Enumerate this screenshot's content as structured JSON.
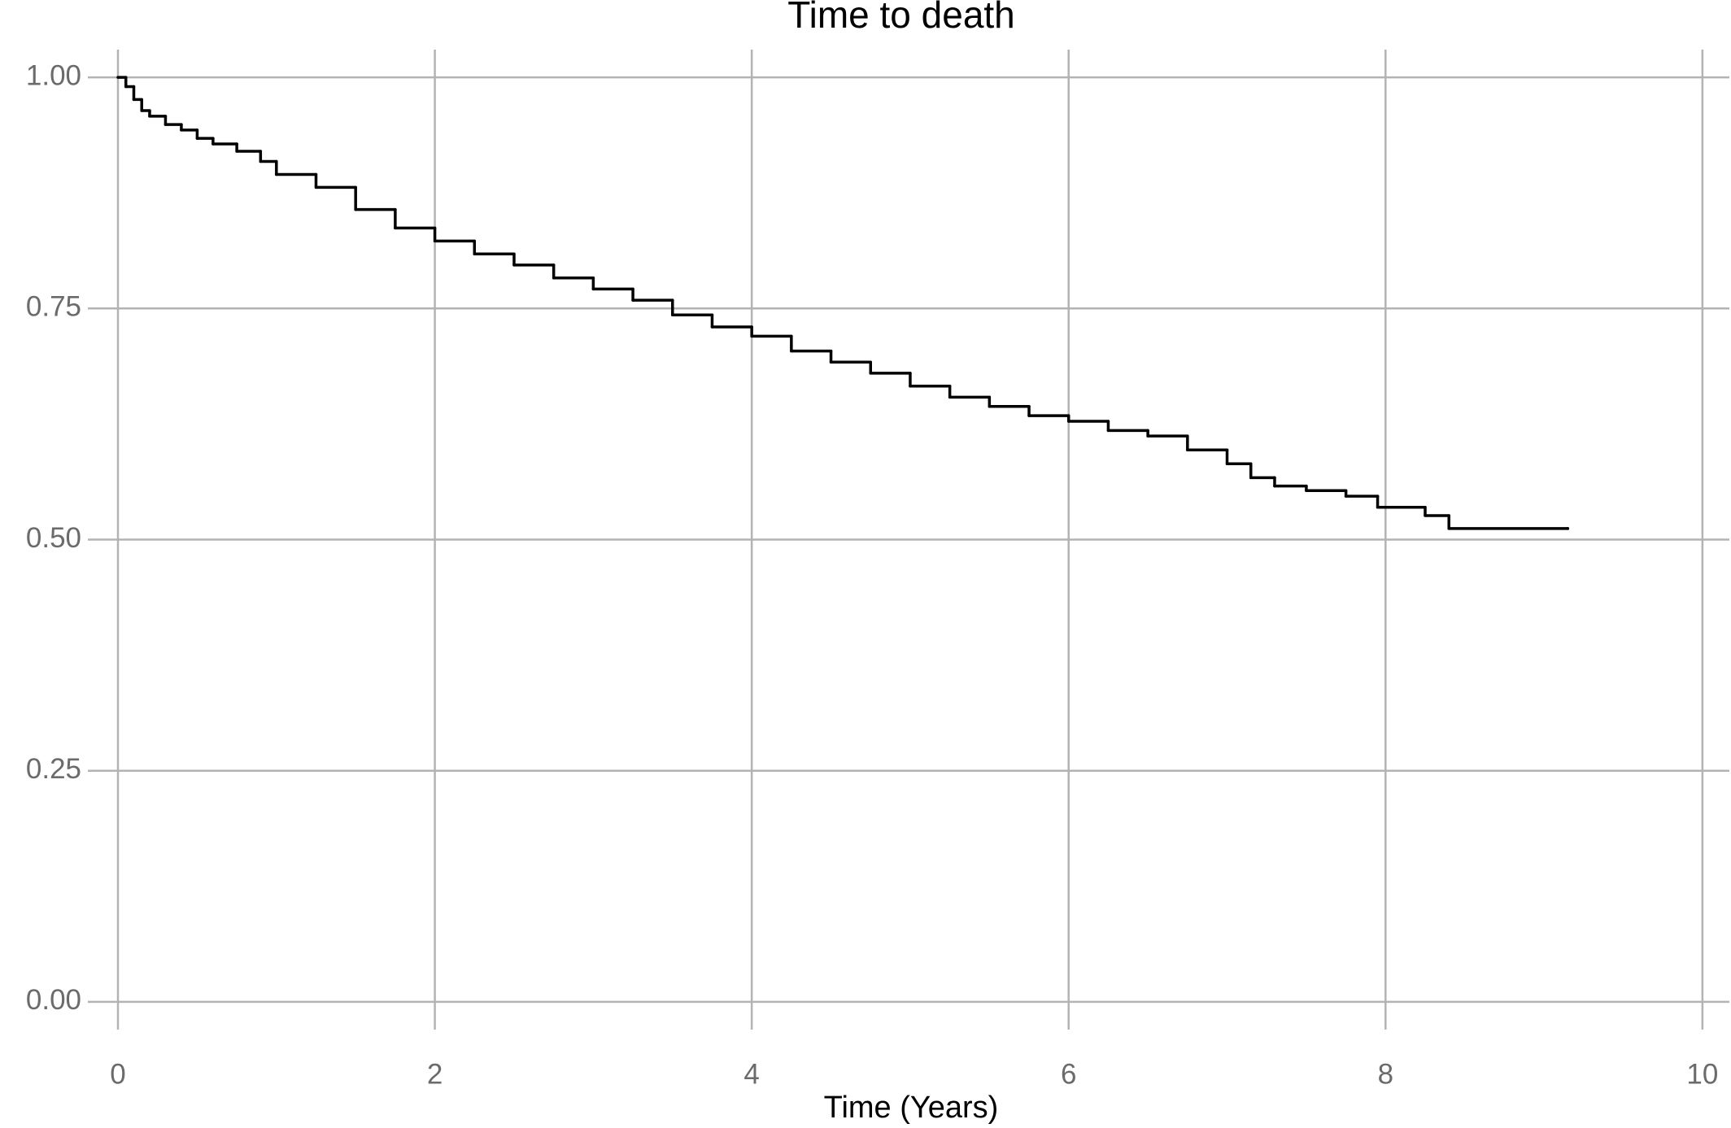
{
  "chart_data": {
    "type": "line",
    "title": "Time to death",
    "xlabel": "Time (Years)",
    "step": "post",
    "x": [
      0,
      0.05,
      0.1,
      0.15,
      0.2,
      0.3,
      0.4,
      0.5,
      0.6,
      0.75,
      0.9,
      1.0,
      1.25,
      1.5,
      1.75,
      2.0,
      2.25,
      2.5,
      2.75,
      3.0,
      3.25,
      3.5,
      3.75,
      4.0,
      4.25,
      4.5,
      4.75,
      5.0,
      5.25,
      5.5,
      5.75,
      6.0,
      6.25,
      6.5,
      6.75,
      7.0,
      7.15,
      7.3,
      7.5,
      7.75,
      7.95,
      8.25,
      8.4,
      9.15
    ],
    "series": [
      {
        "color": "#000000",
        "values": [
          1.0,
          0.99,
          0.976,
          0.964,
          0.958,
          0.949,
          0.943,
          0.934,
          0.928,
          0.92,
          0.909,
          0.895,
          0.881,
          0.857,
          0.837,
          0.823,
          0.809,
          0.797,
          0.783,
          0.771,
          0.759,
          0.743,
          0.73,
          0.72,
          0.704,
          0.692,
          0.68,
          0.666,
          0.654,
          0.644,
          0.634,
          0.628,
          0.618,
          0.612,
          0.597,
          0.582,
          0.567,
          0.558,
          0.553,
          0.547,
          0.535,
          0.526,
          0.512,
          0.512
        ]
      }
    ],
    "xlim": [
      -0.19,
      10.17
    ],
    "ylim": [
      -0.03,
      1.03
    ],
    "xticks": [
      0,
      2,
      4,
      6,
      8,
      10
    ],
    "yticks": [
      {
        "value": 0,
        "label": "0.00"
      },
      0.25,
      {
        "value": 0.5,
        "label": "0.50"
      },
      0.75,
      {
        "value": 1,
        "label": "1.00"
      }
    ],
    "grid": true
  }
}
